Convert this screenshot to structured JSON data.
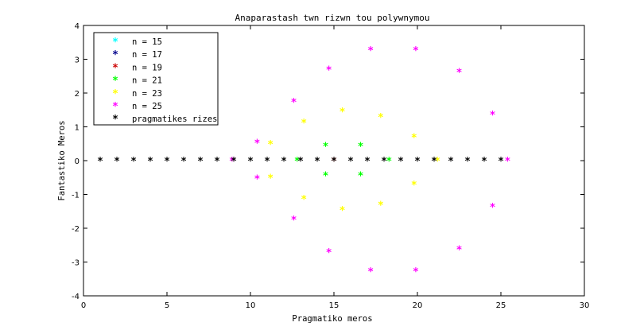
{
  "chart_data": {
    "type": "scatter",
    "title": "Anaparastash twn rizwn tou polywnymou",
    "xlabel": "Pragmatiko meros",
    "ylabel": "Fantastiko Meros",
    "xlim": [
      0,
      30
    ],
    "ylim": [
      -4,
      4
    ],
    "xticks": [
      "0",
      "5",
      "10",
      "15",
      "20",
      "25",
      "30"
    ],
    "yticks": [
      "-4",
      "-3",
      "-2",
      "-1",
      "0",
      "1",
      "2",
      "3",
      "4"
    ],
    "grid": false,
    "legend_position": "top-left",
    "marker": "*",
    "series": [
      {
        "name": "n = 15",
        "color": "#00ffff",
        "points": []
      },
      {
        "name": "n = 17",
        "color": "#00008b",
        "points": []
      },
      {
        "name": "n = 19",
        "color": "#cc0000",
        "points": [
          [
            15.0,
            0.0
          ]
        ]
      },
      {
        "name": "n = 21",
        "color": "#00ff00",
        "points": [
          [
            12.8,
            0.0
          ],
          [
            14.5,
            0.44
          ],
          [
            14.5,
            -0.44
          ],
          [
            16.6,
            0.44
          ],
          [
            16.6,
            -0.44
          ],
          [
            18.3,
            0.0
          ]
        ]
      },
      {
        "name": "n = 23",
        "color": "#ffff00",
        "points": [
          [
            11.2,
            0.5
          ],
          [
            11.2,
            -0.5
          ],
          [
            13.2,
            1.13
          ],
          [
            13.2,
            -1.13
          ],
          [
            15.5,
            1.46
          ],
          [
            15.5,
            -1.46
          ],
          [
            17.8,
            1.3
          ],
          [
            17.8,
            -1.3
          ],
          [
            19.8,
            0.7
          ],
          [
            19.8,
            -0.7
          ],
          [
            21.2,
            0.0
          ]
        ]
      },
      {
        "name": "n = 25",
        "color": "#ff00ff",
        "points": [
          [
            8.9,
            0.0
          ],
          [
            10.4,
            0.53
          ],
          [
            10.4,
            -0.53
          ],
          [
            12.6,
            1.74
          ],
          [
            12.6,
            -1.74
          ],
          [
            14.7,
            2.7
          ],
          [
            14.7,
            -2.7
          ],
          [
            17.2,
            3.27
          ],
          [
            17.2,
            -3.27
          ],
          [
            19.9,
            3.27
          ],
          [
            19.9,
            -3.27
          ],
          [
            22.5,
            2.62
          ],
          [
            22.5,
            -2.62
          ],
          [
            24.5,
            1.36
          ],
          [
            24.5,
            -1.36
          ],
          [
            25.4,
            0.0
          ]
        ]
      },
      {
        "name": "pragmatikes rizes",
        "color": "#000000",
        "points": [
          [
            1,
            0
          ],
          [
            2,
            0
          ],
          [
            3,
            0
          ],
          [
            4,
            0
          ],
          [
            5,
            0
          ],
          [
            6,
            0
          ],
          [
            7,
            0
          ],
          [
            8,
            0
          ],
          [
            9,
            0
          ],
          [
            10,
            0
          ],
          [
            11,
            0
          ],
          [
            12,
            0
          ],
          [
            13,
            0
          ],
          [
            14,
            0
          ],
          [
            15,
            0
          ],
          [
            16,
            0
          ],
          [
            17,
            0
          ],
          [
            18,
            0
          ],
          [
            19,
            0
          ],
          [
            20,
            0
          ],
          [
            21,
            0
          ],
          [
            22,
            0
          ],
          [
            23,
            0
          ],
          [
            24,
            0
          ],
          [
            25,
            0
          ]
        ]
      }
    ]
  }
}
